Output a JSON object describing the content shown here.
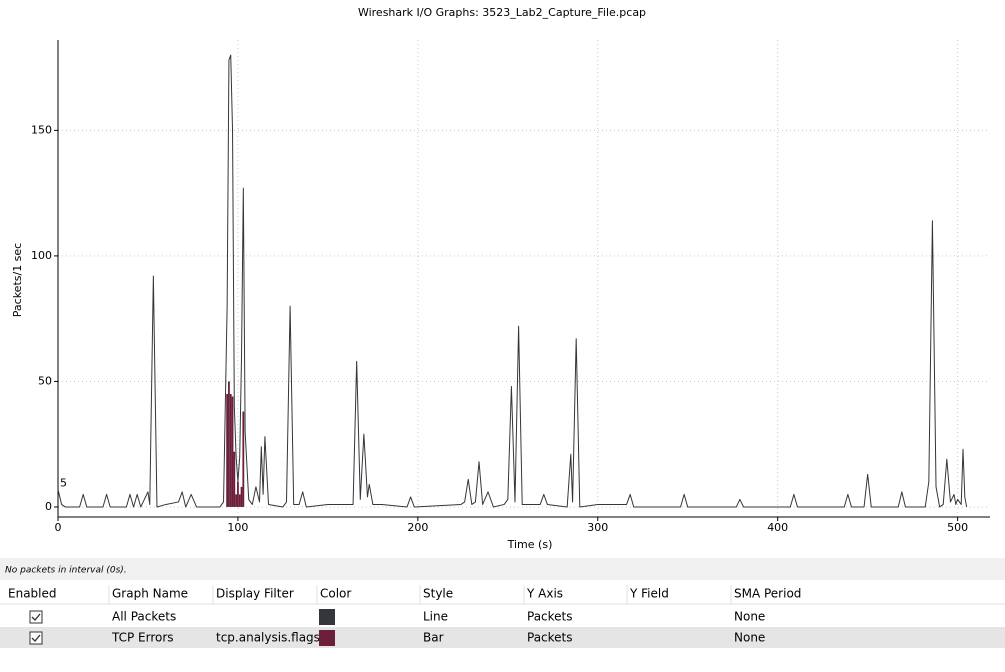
{
  "chart_data": {
    "type": "line",
    "title": "Wireshark I/O Graphs: 3523_Lab2_Capture_File.pcap",
    "x_label": "Time (s)",
    "y_label": "Packets/1 sec",
    "xlim": [
      0,
      518
    ],
    "ylim": [
      -4,
      186
    ],
    "xticks": [
      0,
      100,
      200,
      300,
      400,
      500
    ],
    "yticks": [
      0,
      50,
      100,
      150
    ],
    "grid": true,
    "annotation": "5",
    "series": [
      {
        "name": "All Packets",
        "style": "line",
        "color": "#33363a",
        "x": [
          0,
          2,
          4,
          12,
          14,
          16,
          25,
          27,
          29,
          38,
          40,
          42,
          44,
          46,
          50,
          51,
          53,
          55,
          60,
          67,
          69,
          71,
          74,
          77,
          90,
          92,
          94,
          95,
          96,
          97,
          98,
          99,
          100,
          101,
          102,
          103,
          104,
          106,
          108,
          110,
          112,
          113,
          114,
          115,
          117,
          125,
          127,
          129,
          131,
          134,
          136,
          138,
          150,
          164,
          166,
          168,
          170,
          172,
          173,
          175,
          180,
          194,
          196,
          198,
          224,
          226,
          228,
          230,
          232,
          234,
          236,
          239,
          242,
          248,
          250,
          252,
          254,
          256,
          258,
          262,
          268,
          270,
          272,
          283,
          285,
          286,
          288,
          290,
          300,
          316,
          318,
          320,
          346,
          348,
          350,
          377,
          379,
          381,
          407,
          409,
          411,
          437,
          439,
          441,
          448,
          450,
          452,
          467,
          469,
          471,
          482,
          484,
          486,
          488,
          490,
          492,
          494,
          496,
          498,
          499,
          500,
          502,
          503,
          504,
          505
        ],
        "values": [
          7,
          1,
          0,
          0,
          5,
          0,
          0,
          5,
          0,
          0,
          5,
          0,
          5,
          0,
          6,
          1,
          92,
          0,
          1,
          2,
          6,
          0,
          5,
          0,
          0,
          2,
          80,
          178,
          180,
          150,
          40,
          20,
          10,
          20,
          60,
          127,
          30,
          3,
          1,
          8,
          2,
          24,
          5,
          28,
          1,
          0,
          2,
          80,
          1,
          1,
          6,
          0,
          1,
          1,
          58,
          3,
          29,
          4,
          9,
          1,
          1,
          0,
          4,
          0,
          1,
          2,
          11,
          1,
          2,
          18,
          1,
          6,
          0,
          1,
          3,
          48,
          2,
          72,
          1,
          1,
          1,
          5,
          1,
          0,
          21,
          2,
          67,
          0,
          1,
          1,
          5,
          0,
          0,
          5,
          0,
          0,
          3,
          0,
          0,
          5,
          0,
          0,
          5,
          0,
          0,
          13,
          0,
          0,
          6,
          0,
          0,
          10,
          114,
          8,
          0,
          1,
          19,
          2,
          5,
          1,
          3,
          1,
          23,
          4,
          0
        ]
      },
      {
        "name": "TCP Errors",
        "style": "bar",
        "color": "#6b1f3a",
        "x": [
          94,
          95,
          96,
          97,
          98,
          99,
          100,
          101,
          102,
          103
        ],
        "values": [
          45,
          50,
          45,
          44,
          22,
          5,
          10,
          5,
          8,
          38
        ]
      }
    ]
  },
  "status": "No packets in interval (0s).",
  "graph_table": {
    "headers": [
      "Enabled",
      "Graph Name",
      "Display Filter",
      "Color",
      "Style",
      "Y Axis",
      "Y Field",
      "SMA Period"
    ],
    "rows": [
      {
        "enabled": true,
        "name": "All Packets",
        "filter": "",
        "style": "Line",
        "y_axis": "Packets",
        "sma": "None"
      },
      {
        "enabled": true,
        "name": "TCP Errors",
        "filter": "tcp.analysis.flags",
        "style": "Bar",
        "y_axis": "Packets",
        "sma": "None"
      }
    ]
  }
}
